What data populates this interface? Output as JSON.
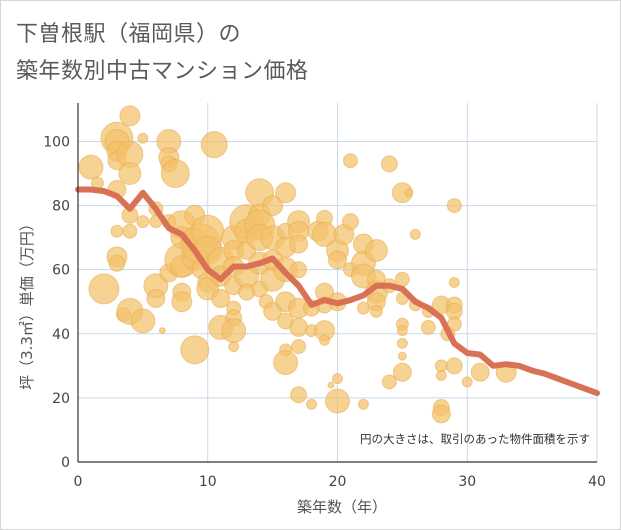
{
  "title_lines": [
    "下曽根駅（福岡県）の",
    "築年数別中古マンション価格"
  ],
  "chart_data": {
    "type": "scatter",
    "title": "下曽根駅（福岡県）の築年数別中古マンション価格",
    "xlabel": "築年数（年）",
    "ylabel": "坪（3.3㎡）単価（万円）",
    "xlim": [
      0,
      40
    ],
    "ylim": [
      0,
      112
    ],
    "xticks": [
      0,
      10,
      20,
      30,
      40
    ],
    "yticks": [
      0,
      20,
      40,
      60,
      80,
      100
    ],
    "grid": true,
    "note": "円の大きさは、取引のあった物件面積を示す",
    "colors": {
      "bubble": "#f3c06a",
      "bubble_edge": "#e8a94a",
      "trend": "#d97155",
      "grid": "#c9d8ea",
      "axis": "#333333"
    },
    "bubbles": [
      [
        1,
        92,
        12
      ],
      [
        1.5,
        87,
        6
      ],
      [
        2,
        54,
        15
      ],
      [
        3,
        101,
        16
      ],
      [
        3,
        100,
        12
      ],
      [
        3,
        97,
        10
      ],
      [
        3,
        94,
        9
      ],
      [
        3,
        85,
        9
      ],
      [
        3,
        72,
        6
      ],
      [
        3,
        64,
        10
      ],
      [
        3,
        62,
        8
      ],
      [
        3.5,
        46,
        7
      ],
      [
        4,
        108,
        10
      ],
      [
        4,
        96,
        13
      ],
      [
        4,
        90,
        11
      ],
      [
        4,
        77,
        8
      ],
      [
        4,
        72,
        7
      ],
      [
        4,
        47,
        13
      ],
      [
        5,
        101,
        5
      ],
      [
        5,
        75,
        6
      ],
      [
        5,
        44,
        12
      ],
      [
        6,
        79,
        7
      ],
      [
        6,
        75,
        6
      ],
      [
        6,
        55,
        12
      ],
      [
        6,
        51,
        9
      ],
      [
        6.5,
        41,
        3
      ],
      [
        7,
        100,
        12
      ],
      [
        7,
        95,
        10
      ],
      [
        7,
        93,
        8
      ],
      [
        7,
        75,
        7
      ],
      [
        7,
        59,
        9
      ],
      [
        7.5,
        90,
        14
      ],
      [
        8,
        74,
        14
      ],
      [
        8,
        70,
        11
      ],
      [
        8,
        63,
        17
      ],
      [
        8,
        61,
        11
      ],
      [
        8,
        53,
        9
      ],
      [
        8,
        50,
        10
      ],
      [
        9,
        77,
        10
      ],
      [
        9,
        69,
        13
      ],
      [
        9,
        64,
        13
      ],
      [
        9,
        35,
        14
      ],
      [
        9.5,
        68,
        20
      ],
      [
        9.5,
        60,
        9
      ],
      [
        10,
        72,
        16
      ],
      [
        10,
        66,
        14
      ],
      [
        10,
        56,
        10
      ],
      [
        10,
        54,
        11
      ],
      [
        10.5,
        99,
        13
      ],
      [
        11,
        63,
        13
      ],
      [
        11,
        58,
        10
      ],
      [
        11,
        51,
        9
      ],
      [
        11,
        42,
        12
      ],
      [
        12,
        70,
        12
      ],
      [
        12,
        66,
        10
      ],
      [
        12,
        61,
        10
      ],
      [
        12,
        55,
        9
      ],
      [
        12,
        48,
        7
      ],
      [
        12,
        45,
        8
      ],
      [
        12,
        41,
        12
      ],
      [
        12,
        36,
        5
      ],
      [
        13,
        75,
        17
      ],
      [
        13,
        72,
        12
      ],
      [
        13,
        66,
        9
      ],
      [
        13,
        58,
        12
      ],
      [
        13,
        53,
        8
      ],
      [
        14,
        84,
        14
      ],
      [
        14,
        77,
        11
      ],
      [
        14,
        74,
        15
      ],
      [
        14,
        70,
        13
      ],
      [
        14,
        62,
        11
      ],
      [
        14,
        54,
        8
      ],
      [
        14.5,
        50,
        7
      ],
      [
        15,
        80,
        10
      ],
      [
        15,
        70,
        12
      ],
      [
        15,
        63,
        10
      ],
      [
        15,
        57,
        12
      ],
      [
        15,
        47,
        9
      ],
      [
        16,
        84,
        10
      ],
      [
        16,
        72,
        8
      ],
      [
        16,
        67,
        10
      ],
      [
        16,
        60,
        12
      ],
      [
        16,
        50,
        10
      ],
      [
        16,
        44,
        8
      ],
      [
        16,
        35,
        6
      ],
      [
        16,
        31,
        12
      ],
      [
        17,
        75,
        11
      ],
      [
        17,
        72,
        10
      ],
      [
        17,
        68,
        9
      ],
      [
        17,
        60,
        8
      ],
      [
        17,
        48,
        10
      ],
      [
        17,
        42,
        9
      ],
      [
        17,
        36,
        7
      ],
      [
        17,
        21,
        8
      ],
      [
        18,
        48,
        8
      ],
      [
        18,
        41,
        6
      ],
      [
        18,
        18,
        5
      ],
      [
        18.5,
        72,
        10
      ],
      [
        19,
        76,
        8
      ],
      [
        19,
        71,
        12
      ],
      [
        19,
        53,
        9
      ],
      [
        19,
        49,
        8
      ],
      [
        19,
        41,
        10
      ],
      [
        19,
        38,
        5
      ],
      [
        19.5,
        24,
        3
      ],
      [
        20,
        66,
        11
      ],
      [
        20,
        63,
        9
      ],
      [
        20,
        50,
        9
      ],
      [
        20,
        26,
        5
      ],
      [
        20,
        19,
        12
      ],
      [
        20.5,
        71,
        10
      ],
      [
        21,
        94,
        7
      ],
      [
        21,
        75,
        8
      ],
      [
        21,
        60,
        7
      ],
      [
        22,
        68,
        10
      ],
      [
        22,
        62,
        12
      ],
      [
        22,
        58,
        12
      ],
      [
        22,
        48,
        6
      ],
      [
        22,
        18,
        5
      ],
      [
        23,
        66,
        11
      ],
      [
        23,
        57,
        9
      ],
      [
        23,
        53,
        11
      ],
      [
        23,
        50,
        9
      ],
      [
        23,
        47,
        6
      ],
      [
        24,
        93,
        8
      ],
      [
        24,
        55,
        7
      ],
      [
        24,
        25,
        7
      ],
      [
        25,
        84,
        10
      ],
      [
        25,
        57,
        7
      ],
      [
        25,
        51,
        6
      ],
      [
        25,
        43,
        6
      ],
      [
        25,
        41,
        5
      ],
      [
        25,
        37,
        5
      ],
      [
        25,
        33,
        4
      ],
      [
        25,
        28,
        9
      ],
      [
        25.5,
        84,
        4
      ],
      [
        26,
        71,
        5
      ],
      [
        26,
        49,
        6
      ],
      [
        27,
        47,
        6
      ],
      [
        27,
        42,
        7
      ],
      [
        28,
        49,
        9
      ],
      [
        28,
        30,
        6
      ],
      [
        28,
        27,
        5
      ],
      [
        28,
        17,
        8
      ],
      [
        28,
        15,
        9
      ],
      [
        28.5,
        40,
        7
      ],
      [
        29,
        80,
        7
      ],
      [
        29,
        56,
        5
      ],
      [
        29,
        49,
        8
      ],
      [
        29,
        47,
        8
      ],
      [
        29,
        43,
        7
      ],
      [
        29,
        30,
        8
      ],
      [
        30,
        25,
        5
      ],
      [
        31,
        28,
        9
      ],
      [
        33,
        28,
        10
      ]
    ],
    "trend": {
      "x": [
        0,
        1,
        2,
        3,
        4,
        5,
        6,
        7,
        8,
        9,
        10,
        11,
        12,
        13,
        14,
        15,
        16,
        17,
        18,
        19,
        20,
        21,
        22,
        23,
        24,
        25,
        26,
        27,
        28,
        29,
        30,
        31,
        32,
        33,
        34,
        35,
        36,
        37,
        38,
        39,
        40
      ],
      "y": [
        85,
        85,
        84.5,
        83,
        79,
        84,
        79,
        73,
        71,
        66,
        60,
        57,
        61,
        61,
        62,
        63.5,
        59,
        55,
        49,
        50.5,
        49.5,
        50.5,
        52,
        55,
        55,
        54,
        50,
        48,
        45,
        37,
        34,
        33.5,
        30,
        30.5,
        30,
        28.5,
        27.5,
        26,
        24.5,
        23,
        21.5
      ]
    }
  }
}
